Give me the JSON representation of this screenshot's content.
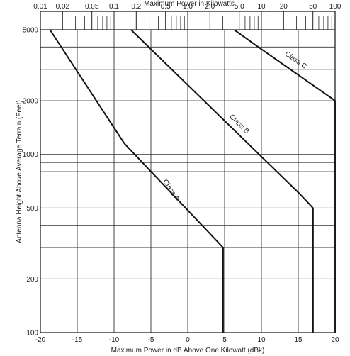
{
  "chart_data": {
    "type": "line",
    "title": "",
    "xlabel": "Maximum Power in dB Above One Kilowatt (dBk)",
    "x2label": "Maximum Power in Kilowatts",
    "ylabel": "Antenna Height Above Average Terrain (Feet)",
    "xlim": [
      -20,
      20
    ],
    "ylim": [
      100,
      5000
    ],
    "yscale": "log",
    "grid": true,
    "x_ticks": [
      -20,
      -15,
      -10,
      -5,
      0,
      5,
      10,
      15,
      20
    ],
    "x_tick_labels": [
      "-20",
      "-15",
      "-10",
      "-5",
      "0",
      "5",
      "10",
      "15",
      "20"
    ],
    "y_ticks": [
      100,
      200,
      500,
      1000,
      2000,
      5000
    ],
    "y_tick_labels": [
      "100",
      "200",
      "500",
      "1000",
      "2000",
      "5000"
    ],
    "x2_ticks_kw": [
      0.01,
      0.02,
      0.05,
      0.1,
      0.2,
      0.5,
      1.0,
      2.0,
      5.0,
      10,
      20,
      50,
      100
    ],
    "x2_tick_labels": [
      "0.01",
      "0.02",
      "0.05",
      "0.1",
      "0.2",
      "0.5",
      "1.0",
      "2.0",
      "5.0",
      "10",
      "20",
      "50",
      "100"
    ],
    "x2_minor_kw": [
      0.03,
      0.04,
      0.06,
      0.07,
      0.08,
      0.09,
      0.3,
      0.4,
      0.6,
      0.7,
      0.8,
      0.9,
      3,
      4,
      6,
      7,
      8,
      9,
      30,
      40,
      60,
      70,
      80,
      90
    ],
    "y_minor": [
      300,
      400,
      600,
      700,
      800,
      900,
      3000,
      4000
    ],
    "series": [
      {
        "name": "Class A",
        "points": [
          [
            -18.7,
            5000
          ],
          [
            -8.6,
            1150
          ],
          [
            4.8,
            300
          ],
          [
            4.8,
            100
          ]
        ],
        "label_pos": [
          -2.5,
          620
        ]
      },
      {
        "name": "Class B",
        "points": [
          [
            -7.7,
            5000
          ],
          [
            15.2,
            600
          ],
          [
            17,
            500
          ],
          [
            17,
            100
          ]
        ],
        "label_pos": [
          6.8,
          1450
        ]
      },
      {
        "name": "Class C",
        "points": [
          [
            6.3,
            5000
          ],
          [
            9.6,
            4000
          ],
          [
            20,
            2000
          ],
          [
            20,
            100
          ]
        ],
        "label_pos": [
          14.5,
          3300
        ]
      }
    ]
  }
}
